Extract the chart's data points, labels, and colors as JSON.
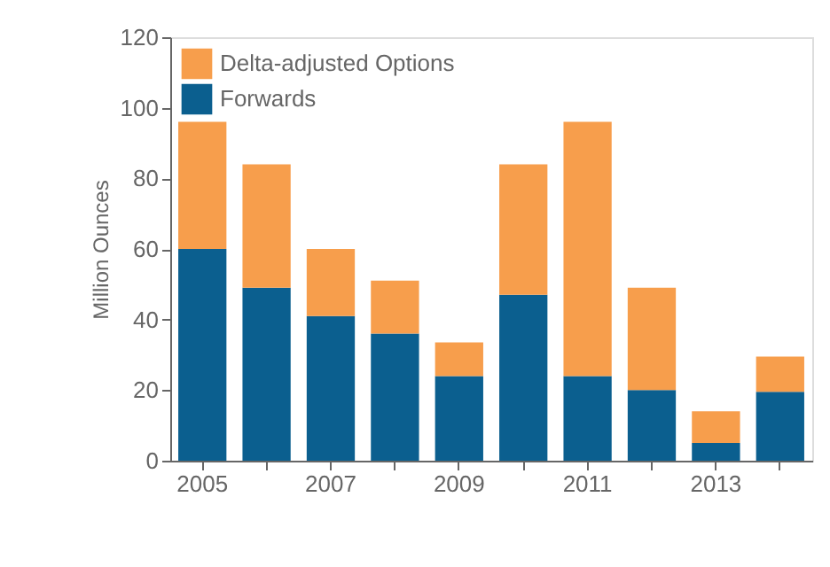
{
  "chart_data": {
    "type": "bar",
    "stacked": true,
    "ylabel": "Million Ounces",
    "categories": [
      "2005",
      null,
      "2007",
      null,
      "2009",
      null,
      "2011",
      null,
      "2013",
      null
    ],
    "series": [
      {
        "name": "Forwards",
        "color": "#0b5f8f",
        "values": [
          60,
          49,
          41,
          36,
          24,
          47,
          24,
          20,
          5,
          19.5
        ]
      },
      {
        "name": "Delta-adjusted Options",
        "color": "#f79e4c",
        "values": [
          36,
          35,
          19,
          15,
          9.5,
          37,
          72,
          29,
          9,
          10
        ]
      }
    ],
    "ylim": [
      0,
      120
    ],
    "yticks": [
      0,
      20,
      40,
      60,
      80,
      100,
      120
    ],
    "grid": false,
    "legend": "top left"
  }
}
